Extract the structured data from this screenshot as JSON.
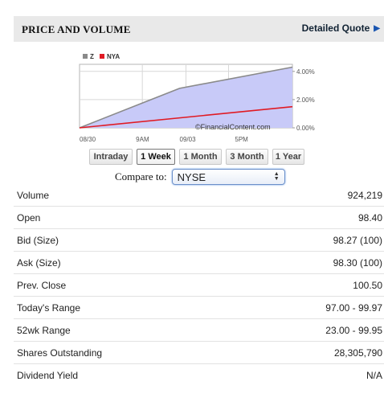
{
  "header": {
    "title": "PRICE AND VOLUME",
    "detailed_quote": "Detailed Quote"
  },
  "chart_data": {
    "type": "area",
    "x_tick_labels": [
      "08/30",
      "9AM",
      "09/03",
      "5PM"
    ],
    "y_tick_labels": [
      "4.00%",
      "2.00%",
      "0.00%"
    ],
    "ylim": [
      0,
      4.5
    ],
    "watermark": "©FinancialContent.com",
    "series": [
      {
        "name": "Z",
        "color": "#8a8a8a",
        "fill": "#c8caf8",
        "x": [
          0,
          0.47,
          1
        ],
        "values": [
          0,
          2.8,
          4.3
        ]
      },
      {
        "name": "NYA",
        "color": "#e01b24",
        "x": [
          0,
          1
        ],
        "values": [
          0,
          1.5
        ]
      }
    ]
  },
  "range_buttons": [
    {
      "label": "Intraday",
      "active": false
    },
    {
      "label": "1 Week",
      "active": true
    },
    {
      "label": "1 Month",
      "active": false
    },
    {
      "label": "3 Month",
      "active": false
    },
    {
      "label": "1 Year",
      "active": false
    }
  ],
  "compare": {
    "label": "Compare to:",
    "selected": "NYSE"
  },
  "stats": [
    {
      "label": "Volume",
      "value": "924,219"
    },
    {
      "label": "Open",
      "value": "98.40"
    },
    {
      "label": "Bid (Size)",
      "value": "98.27 (100)"
    },
    {
      "label": "Ask (Size)",
      "value": "98.30 (100)"
    },
    {
      "label": "Prev. Close",
      "value": "100.50"
    },
    {
      "label": "Today's Range",
      "value": "97.00 - 99.97"
    },
    {
      "label": "52wk Range",
      "value": "23.00 - 99.95"
    },
    {
      "label": "Shares Outstanding",
      "value": "28,305,790"
    },
    {
      "label": "Dividend Yield",
      "value": "N/A"
    }
  ]
}
